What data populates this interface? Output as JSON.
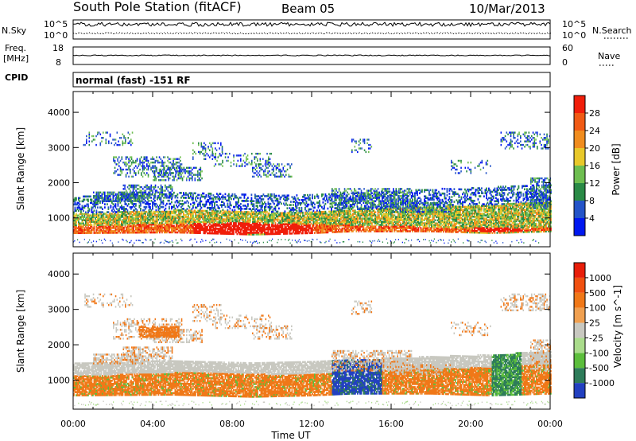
{
  "header": {
    "station": "South Pole Station (fitACF)",
    "beam": "Beam 05",
    "date": "10/Mar/2013"
  },
  "summary_panels": {
    "nsky": {
      "label": "N.Sky",
      "ticks": [
        "10^5",
        "10^0"
      ]
    },
    "nsearch": {
      "label": "N.Search",
      "ticks": [
        "10^5",
        "10^0"
      ]
    },
    "freq": {
      "label_line1": "Freq.",
      "label_line2": "[MHz]",
      "ticks": [
        "18",
        "8"
      ]
    },
    "nave": {
      "label": "Nave",
      "ticks": [
        "60",
        "0"
      ]
    },
    "cpid": {
      "label": "CPID",
      "value": "normal (fast) -151 RF"
    }
  },
  "chart_data": [
    {
      "type": "heatmap",
      "name": "power",
      "xlabel": "",
      "ylabel": "Slant Range [km]",
      "x_range_hours": [
        0,
        24
      ],
      "ylim": [
        180,
        4590
      ],
      "y_ticks": [
        "1000",
        "2000",
        "3000",
        "4000"
      ],
      "x_ticks": [
        "00:00",
        "04:00",
        "08:00",
        "12:00",
        "16:00",
        "20:00",
        "00:00"
      ],
      "colorbar": {
        "label": "Power [dB]",
        "ticks": [
          "4",
          "8",
          "12",
          "16",
          "20",
          "24",
          "28"
        ],
        "colors": [
          "#0018f0",
          "#2454c8",
          "#2a8a46",
          "#6ebe50",
          "#e8c82a",
          "#f08c1e",
          "#f05a14",
          "#f01e0a"
        ]
      },
      "echo_bands": [
        {
          "t": [
            0.0,
            5.0,
            9.0,
            12.0,
            14.0,
            18.0,
            21.0,
            24.0
          ],
          "r_lo": [
            600,
            620,
            560,
            600,
            650,
            650,
            600,
            650
          ],
          "r_hi": [
            1150,
            1250,
            1200,
            1200,
            1250,
            1350,
            1400,
            1500
          ],
          "level": 5
        },
        {
          "t": [
            0.0,
            4.0,
            8.0,
            12.0,
            16.0,
            20.0,
            24.0
          ],
          "r_lo": [
            600,
            600,
            560,
            580,
            650,
            620,
            650
          ],
          "r_hi": [
            800,
            850,
            900,
            850,
            800,
            750,
            750
          ],
          "level": 7
        },
        {
          "t": [
            0.0,
            6.0,
            12.0,
            18.0,
            24.0
          ],
          "r_lo": [
            1200,
            1300,
            1200,
            1400,
            1500
          ],
          "r_hi": [
            1500,
            1600,
            1450,
            1700,
            1800
          ],
          "level": 1
        }
      ]
    },
    {
      "type": "heatmap",
      "name": "velocity",
      "xlabel": "Time UT",
      "ylabel": "Slant Range [km]",
      "x_range_hours": [
        0,
        24
      ],
      "ylim": [
        180,
        4590
      ],
      "y_ticks": [
        "1000",
        "2000",
        "3000",
        "4000"
      ],
      "x_ticks": [
        "00:00",
        "04:00",
        "08:00",
        "12:00",
        "16:00",
        "20:00",
        "00:00"
      ],
      "colorbar": {
        "label": "Velocity [m s^-1]",
        "ticks": [
          "1000",
          "500",
          "100",
          "25",
          "-25",
          "-100",
          "-500",
          "-1000"
        ],
        "colors": [
          "#2240c0",
          "#2e7c5a",
          "#5cbe3c",
          "#aadc8c",
          "#c8c8c0",
          "#f0a050",
          "#f07818",
          "#f05010",
          "#e81e0a"
        ]
      }
    }
  ]
}
